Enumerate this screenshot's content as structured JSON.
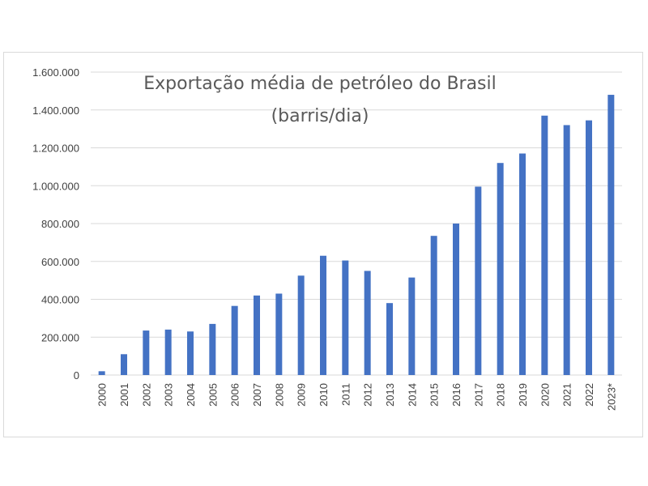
{
  "chart_data": {
    "type": "bar",
    "title": "Exportação média de petróleo do Brasil",
    "subtitle": "(barris/dia)",
    "xlabel": "",
    "ylabel": "",
    "categories": [
      "2000",
      "2001",
      "2002",
      "2003",
      "2004",
      "2005",
      "2006",
      "2007",
      "2008",
      "2009",
      "2010",
      "2011",
      "2012",
      "2013",
      "2014",
      "2015",
      "2016",
      "2017",
      "2018",
      "2019",
      "2020",
      "2021",
      "2022",
      "2023*"
    ],
    "values": [
      20000,
      110000,
      235000,
      240000,
      230000,
      270000,
      365000,
      420000,
      430000,
      525000,
      630000,
      605000,
      550000,
      380000,
      515000,
      735000,
      800000,
      995000,
      1120000,
      1170000,
      1370000,
      1320000,
      1345000,
      1480000
    ],
    "ylim": [
      0,
      1600000
    ],
    "yticks": [
      0,
      200000,
      400000,
      600000,
      800000,
      1000000,
      1200000,
      1400000,
      1600000
    ],
    "ytick_labels": [
      "0",
      "200.000",
      "400.000",
      "600.000",
      "800.000",
      "1.000.000",
      "1.200.000",
      "1.400.000",
      "1.600.000"
    ],
    "grid": true,
    "legend": "none",
    "bar_color": "#4472c4",
    "grid_color": "#d9d9d9"
  }
}
